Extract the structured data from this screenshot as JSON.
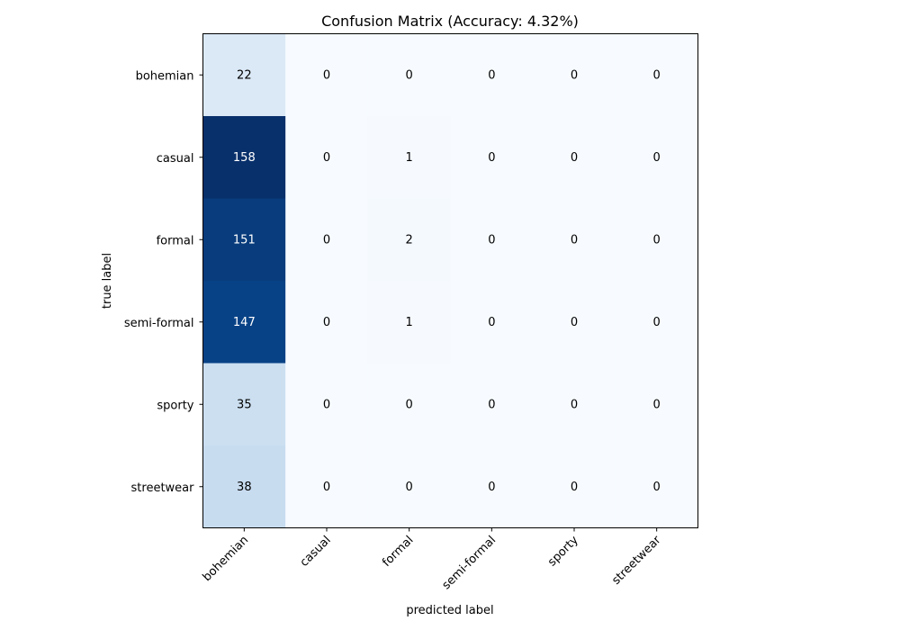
{
  "chart_data": {
    "type": "heatmap",
    "title": "Confusion Matrix (Accuracy: 4.32%)",
    "xlabel": "predicted label",
    "ylabel": "true label",
    "row_labels": [
      "bohemian",
      "casual",
      "formal",
      "semi-formal",
      "sporty",
      "streetwear"
    ],
    "col_labels": [
      "bohemian",
      "casual",
      "formal",
      "semi-formal",
      "sporty",
      "streetwear"
    ],
    "values": [
      [
        22,
        0,
        0,
        0,
        0,
        0
      ],
      [
        158,
        0,
        1,
        0,
        0,
        0
      ],
      [
        151,
        0,
        2,
        0,
        0,
        0
      ],
      [
        147,
        0,
        1,
        0,
        0,
        0
      ],
      [
        35,
        0,
        0,
        0,
        0,
        0
      ],
      [
        38,
        0,
        0,
        0,
        0,
        0
      ]
    ],
    "colormap": "Blues",
    "colors": {
      "low": "#f7fbff",
      "high": "#08306b",
      "text_dark": "#000000",
      "text_light": "#ffffff"
    },
    "grid": false,
    "colorbar": false
  }
}
